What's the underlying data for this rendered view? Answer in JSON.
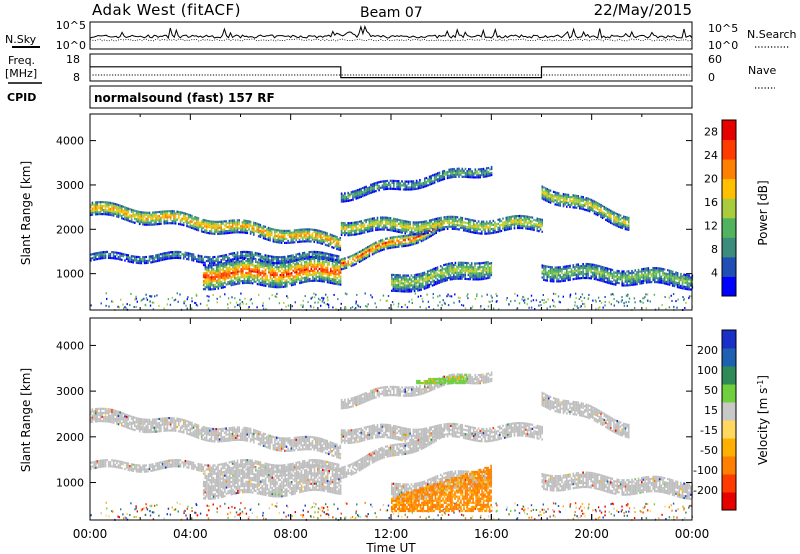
{
  "header": {
    "station": "Adak West (fitACF)",
    "beam": "Beam 07",
    "date": "22/May/2015"
  },
  "noise_panel": {
    "left_label": "N.Sky",
    "right_label": "N.Search",
    "left_ticks": [
      "10^5",
      "10^0"
    ],
    "right_ticks": [
      "10^5",
      "10^0"
    ]
  },
  "freq_panel": {
    "left_label": "Freq.",
    "left_unit": "[MHz]",
    "left_ticks": [
      "18",
      "8"
    ],
    "right_label": "Nave",
    "right_ticks": [
      "60",
      "0"
    ]
  },
  "cpid": {
    "label": "CPID",
    "text": "normalsound (fast) 157 RF"
  },
  "colors": {
    "power_scale": [
      "#0000ff",
      "#1f4fb4",
      "#3c8c7c",
      "#52b35e",
      "#a8cc3c",
      "#ffc000",
      "#ff8000",
      "#ff3c00",
      "#e60000"
    ],
    "velocity_scale": [
      "#e60000",
      "#ff3c00",
      "#ff8000",
      "#ffb000",
      "#ffd860",
      "#c8c8c8",
      "#6fcf3c",
      "#2e8b57",
      "#2060b0",
      "#1a2ec8"
    ],
    "ground_scatter": "#bebebe"
  },
  "chart_data": [
    {
      "type": "heatmap",
      "title": "Power",
      "xlabel": "Time UT",
      "ylabel": "Slant Range [km]",
      "x_ticks": [
        "00:00",
        "04:00",
        "08:00",
        "12:00",
        "16:00",
        "20:00",
        "00:00"
      ],
      "y_ticks": [
        "1000",
        "2000",
        "3000",
        "4000"
      ],
      "ylim": [
        180,
        4600
      ],
      "xlim_hours": [
        0,
        24
      ],
      "colorbar": {
        "label": "Power [dB]",
        "ticks": [
          "4",
          "8",
          "12",
          "16",
          "20",
          "24",
          "28"
        ],
        "range": [
          0,
          30
        ]
      },
      "echo_bands": [
        {
          "t": [
            0.0,
            10.0
          ],
          "range_start": 2500,
          "range_end": 1750,
          "width": 300,
          "peak_db": 22
        },
        {
          "t": [
            0.0,
            10.0
          ],
          "range_start": 1400,
          "range_end": 1400,
          "width": 160,
          "peak_db": 10
        },
        {
          "t": [
            4.5,
            10.0
          ],
          "range_start": 1000,
          "range_end": 1100,
          "width": 550,
          "peak_db": 26
        },
        {
          "t": [
            10.0,
            14.0
          ],
          "range_start": 1300,
          "range_end": 2100,
          "width": 250,
          "peak_db": 26
        },
        {
          "t": [
            10.0,
            18.0
          ],
          "range_start": 2100,
          "range_end": 2150,
          "width": 300,
          "peak_db": 18
        },
        {
          "t": [
            10.0,
            16.0
          ],
          "range_start": 2800,
          "range_end": 3400,
          "width": 200,
          "peak_db": 12
        },
        {
          "t": [
            12.0,
            16.0
          ],
          "range_start": 800,
          "range_end": 1200,
          "width": 400,
          "peak_db": 16
        },
        {
          "t": [
            18.0,
            21.5
          ],
          "range_start": 2900,
          "range_end": 2200,
          "width": 300,
          "peak_db": 18
        },
        {
          "t": [
            18.0,
            24.0
          ],
          "range_start": 1100,
          "range_end": 900,
          "width": 350,
          "peak_db": 14
        }
      ]
    },
    {
      "type": "heatmap",
      "title": "Velocity",
      "xlabel": "Time UT",
      "ylabel": "Slant Range [km]",
      "x_ticks": [
        "00:00",
        "04:00",
        "08:00",
        "12:00",
        "16:00",
        "20:00",
        "00:00"
      ],
      "y_ticks": [
        "1000",
        "2000",
        "3000",
        "4000"
      ],
      "ylim": [
        180,
        4600
      ],
      "xlim_hours": [
        0,
        24
      ],
      "colorbar": {
        "label": "Velocity [m s^-1]",
        "ticks": [
          "200",
          "100",
          "50",
          "15",
          "-15",
          "-50",
          "-100",
          "-200"
        ]
      },
      "notable_regions": [
        {
          "t": [
            12.0,
            16.0
          ],
          "range": [
            400,
            1400
          ],
          "velocity": -80
        },
        {
          "t": [
            13.0,
            15.0
          ],
          "range": [
            3200,
            3400
          ],
          "velocity": 40
        }
      ]
    }
  ]
}
